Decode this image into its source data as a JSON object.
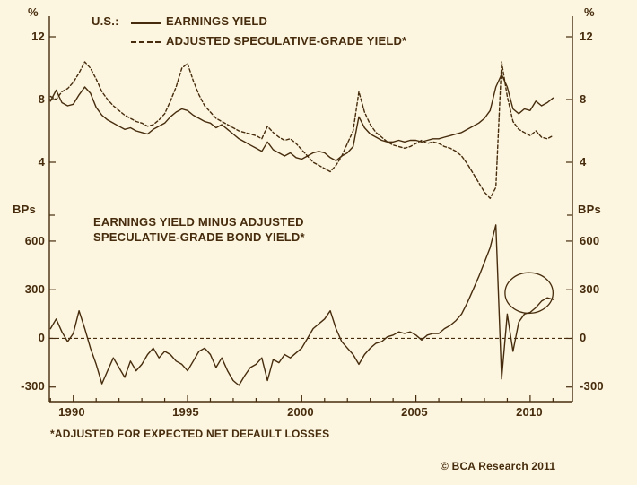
{
  "meta": {
    "background_color": "#fcf5df",
    "ink_color": "#462c0d"
  },
  "legend": {
    "prefix": "U.S.:",
    "series1_label": "EARNINGS YIELD",
    "series2_label": "ADJUSTED SPECULATIVE-GRADE YIELD*"
  },
  "panel2_title": {
    "line1": "EARNINGS YIELD MINUS ADJUSTED",
    "line2": "SPECULATIVE-GRADE BOND YIELD*"
  },
  "axes": {
    "unit_top_left": "%",
    "unit_top_right": "%",
    "unit_bottom_left": "BPs",
    "unit_bottom_right": "BPs",
    "top_yticks": [
      12,
      8,
      4
    ],
    "bottom_yticks": [
      600,
      300,
      0,
      -300
    ],
    "xticks": [
      1990,
      1995,
      2000,
      2005,
      2010
    ]
  },
  "footnote": "*ADJUSTED FOR EXPECTED NET DEFAULT LOSSES",
  "copyright": "© BCA Research 2011",
  "chart_data": [
    {
      "type": "line",
      "panel": "top",
      "title": "U.S. earnings yield vs adjusted speculative-grade yield",
      "ylabel": "%",
      "xlim": [
        1988.95,
        2011.85
      ],
      "ylim": [
        1.2,
        13.2
      ],
      "yticks": [
        4,
        8,
        12
      ],
      "grid": false,
      "legend_position": "top-left",
      "series": [
        {
          "name": "EARNINGS YIELD",
          "style": "solid",
          "x_start": 1989,
          "x_step": 0.25,
          "values": [
            7.9,
            8.6,
            7.8,
            7.6,
            7.7,
            8.3,
            8.8,
            8.4,
            7.5,
            7.0,
            6.7,
            6.5,
            6.3,
            6.1,
            6.2,
            6.0,
            5.9,
            5.8,
            6.1,
            6.3,
            6.5,
            6.9,
            7.2,
            7.4,
            7.3,
            7.0,
            6.8,
            6.6,
            6.5,
            6.2,
            6.4,
            6.1,
            5.8,
            5.5,
            5.3,
            5.1,
            4.9,
            4.7,
            5.3,
            4.8,
            4.6,
            4.4,
            4.6,
            4.3,
            4.2,
            4.4,
            4.6,
            4.7,
            4.6,
            4.3,
            4.1,
            4.4,
            4.6,
            5.0,
            6.9,
            6.2,
            5.8,
            5.6,
            5.4,
            5.3,
            5.3,
            5.4,
            5.3,
            5.4,
            5.4,
            5.3,
            5.4,
            5.5,
            5.5,
            5.6,
            5.7,
            5.8,
            5.9,
            6.1,
            6.3,
            6.5,
            6.8,
            7.3,
            8.8,
            9.6,
            8.8,
            7.4,
            7.1,
            7.4,
            7.3,
            7.9,
            7.6,
            7.8,
            8.1
          ]
        },
        {
          "name": "ADJUSTED SPECULATIVE-GRADE YIELD*",
          "style": "dashed",
          "x_start": 1989,
          "x_step": 0.25,
          "values": [
            8.2,
            8.0,
            8.5,
            8.7,
            9.1,
            9.7,
            10.4,
            10.0,
            9.3,
            8.5,
            8.0,
            7.6,
            7.3,
            7.0,
            6.8,
            6.6,
            6.5,
            6.3,
            6.4,
            6.7,
            7.1,
            7.9,
            8.8,
            10.0,
            10.3,
            9.2,
            8.3,
            7.6,
            7.2,
            6.8,
            6.6,
            6.4,
            6.2,
            6.0,
            5.9,
            5.8,
            5.7,
            5.5,
            6.3,
            5.9,
            5.6,
            5.4,
            5.5,
            5.2,
            4.8,
            4.4,
            4.0,
            3.8,
            3.6,
            3.4,
            3.8,
            4.4,
            5.2,
            6.0,
            8.5,
            7.2,
            6.4,
            5.9,
            5.6,
            5.3,
            5.1,
            5.0,
            4.9,
            5.0,
            5.2,
            5.4,
            5.2,
            5.3,
            5.2,
            5.0,
            4.9,
            4.7,
            4.4,
            3.9,
            3.3,
            2.7,
            2.1,
            1.7,
            2.4,
            10.4,
            8.2,
            6.6,
            6.1,
            5.9,
            5.7,
            6.0,
            5.6,
            5.5,
            5.7
          ]
        }
      ]
    },
    {
      "type": "line",
      "panel": "bottom",
      "title": "EARNINGS YIELD MINUS ADJUSTED SPECULATIVE-GRADE BOND YIELD*",
      "ylabel": "BPs",
      "xlim": [
        1988.95,
        2011.85
      ],
      "ylim": [
        -390,
        760
      ],
      "yticks": [
        -300,
        0,
        300,
        600
      ],
      "grid": false,
      "zero_line": "dashed",
      "annotation_circle": {
        "x": 2009.95,
        "y": 280,
        "rx_years": 1.05,
        "ry_value": 125
      },
      "series": [
        {
          "name": "EARNINGS YIELD MINUS ADJUSTED SPECULATIVE-GRADE BOND YIELD*",
          "style": "solid",
          "x_start": 1989,
          "x_step": 0.25,
          "values": [
            60,
            120,
            40,
            -20,
            30,
            170,
            60,
            -60,
            -160,
            -280,
            -200,
            -120,
            -180,
            -240,
            -140,
            -200,
            -160,
            -100,
            -60,
            -120,
            -80,
            -100,
            -140,
            -160,
            -200,
            -140,
            -80,
            -60,
            -100,
            -180,
            -120,
            -200,
            -260,
            -290,
            -230,
            -180,
            -160,
            -120,
            -260,
            -130,
            -150,
            -100,
            -120,
            -90,
            -60,
            0,
            60,
            90,
            120,
            170,
            60,
            -20,
            -60,
            -100,
            -160,
            -100,
            -60,
            -30,
            -20,
            10,
            20,
            40,
            30,
            40,
            20,
            -10,
            20,
            30,
            30,
            60,
            80,
            110,
            150,
            220,
            300,
            380,
            470,
            560,
            700,
            -250,
            150,
            -80,
            100,
            150,
            160,
            190,
            230,
            250,
            240
          ]
        }
      ]
    }
  ]
}
